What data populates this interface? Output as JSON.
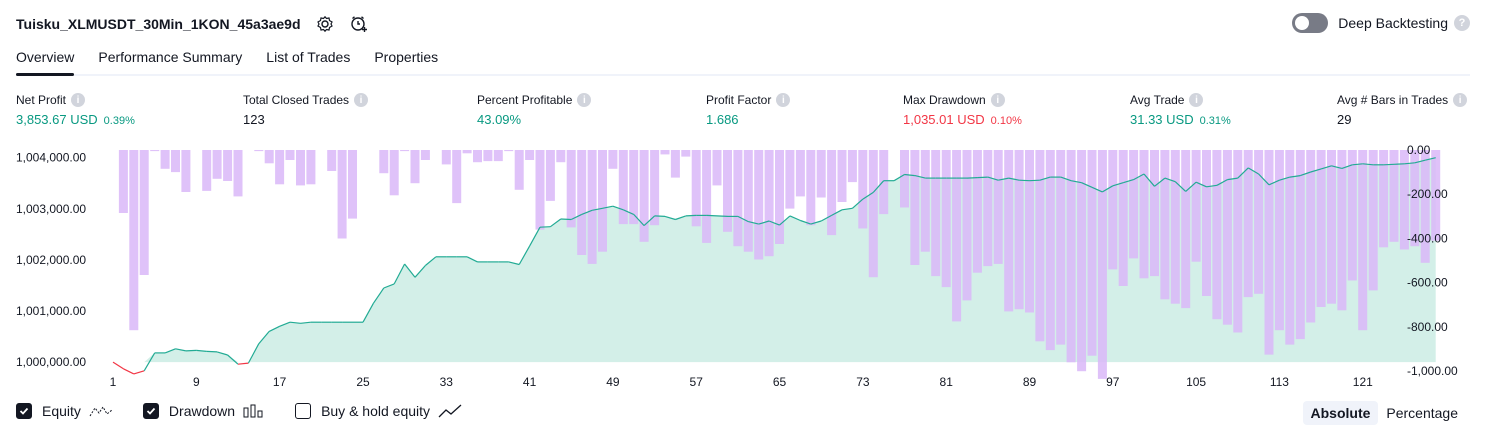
{
  "header": {
    "title": "Tuisku_XLMUSDT_30Min_1KON_45a3ae9d",
    "deep_backtesting_label": "Deep Backtesting"
  },
  "tabs": [
    {
      "label": "Overview"
    },
    {
      "label": "Performance Summary"
    },
    {
      "label": "List of Trades"
    },
    {
      "label": "Properties"
    }
  ],
  "metrics": {
    "net_profit": {
      "label": "Net Profit",
      "value": "3,853.67 USD",
      "pct": "0.39%"
    },
    "total_closed_trades": {
      "label": "Total Closed Trades",
      "value": "123"
    },
    "percent_profitable": {
      "label": "Percent Profitable",
      "value": "43.09%"
    },
    "profit_factor": {
      "label": "Profit Factor",
      "value": "1.686"
    },
    "max_drawdown": {
      "label": "Max Drawdown",
      "value": "1,035.01 USD",
      "pct": "0.10%"
    },
    "avg_trade": {
      "label": "Avg Trade",
      "value": "31.33 USD",
      "pct": "0.31%"
    },
    "avg_bars": {
      "label": "Avg # Bars in Trades",
      "value": "29"
    }
  },
  "legend": {
    "equity": "Equity",
    "drawdown": "Drawdown",
    "buy_hold": "Buy & hold equity"
  },
  "modes": {
    "absolute": "Absolute",
    "percentage": "Percentage"
  },
  "colors": {
    "equity_line": "#22ab94",
    "equity_fill": "#d3efe8",
    "equity_negative": "#f23645",
    "drawdown_bar": "#d9b7f8",
    "drawdown_overlap": "#b5acee",
    "positive": "#089981",
    "negative": "#f23645"
  },
  "chart_data": {
    "type": "line",
    "left_axis": {
      "range": [
        999650,
        1004150
      ],
      "ticks": [
        "1,004,000.00",
        "1,003,000.00",
        "1,002,000.00",
        "1,001,000.00",
        "1,000,000.00"
      ],
      "tick_values": [
        1004000,
        1003000,
        1002000,
        1001000,
        1000000
      ]
    },
    "right_axis": {
      "range": [
        -1040,
        0
      ],
      "ticks": [
        "0.00",
        "-200.00",
        "-400.00",
        "-600.00",
        "-800.00",
        "-1,000.00"
      ],
      "tick_values": [
        0,
        -200,
        -400,
        -600,
        -800,
        -1000
      ]
    },
    "x_ticks": [
      1,
      9,
      17,
      25,
      33,
      41,
      49,
      57,
      65,
      73,
      81,
      89,
      97,
      105,
      113,
      121
    ],
    "x_range": [
      1,
      124
    ],
    "equity": [
      1000000,
      999870,
      999770,
      999830,
      1000180,
      1000180,
      1000260,
      1000220,
      1000230,
      1000210,
      1000200,
      1000140,
      999960,
      999980,
      1000360,
      1000600,
      1000700,
      1000780,
      1000760,
      1000780,
      1000780,
      1000780,
      1000780,
      1000780,
      1000780,
      1001150,
      1001450,
      1001530,
      1001920,
      1001660,
      1001890,
      1002060,
      1002060,
      1002060,
      1002060,
      1001960,
      1001960,
      1001960,
      1001960,
      1001910,
      1002270,
      1002640,
      1002650,
      1002800,
      1002790,
      1002890,
      1002970,
      1003010,
      1003050,
      1002980,
      1002890,
      1002670,
      1002860,
      1002850,
      1002790,
      1002860,
      1002870,
      1002870,
      1002860,
      1002850,
      1002850,
      1002750,
      1002700,
      1002760,
      1002680,
      1002860,
      1002770,
      1002700,
      1002760,
      1002870,
      1002980,
      1003010,
      1003190,
      1003320,
      1003550,
      1003550,
      1003670,
      1003650,
      1003600,
      1003600,
      1003600,
      1003600,
      1003600,
      1003610,
      1003620,
      1003560,
      1003600,
      1003560,
      1003550,
      1003560,
      1003620,
      1003620,
      1003550,
      1003510,
      1003420,
      1003330,
      1003450,
      1003510,
      1003570,
      1003680,
      1003440,
      1003600,
      1003530,
      1003340,
      1003520,
      1003430,
      1003460,
      1003570,
      1003600,
      1003800,
      1003680,
      1003470,
      1003560,
      1003620,
      1003650,
      1003720,
      1003780,
      1003840,
      1003790,
      1003860,
      1003880,
      1003860,
      1003860,
      1003870,
      1003880,
      1003900,
      1003950,
      1004000
    ],
    "drawdown": [
      0,
      -285,
      -815,
      -565,
      -5,
      -85,
      -100,
      -190,
      0,
      -185,
      -130,
      -140,
      -210,
      0,
      -5,
      -60,
      -155,
      -45,
      -160,
      -155,
      0,
      -95,
      -400,
      -310,
      0,
      0,
      -105,
      -205,
      -5,
      -150,
      -45,
      0,
      -65,
      -240,
      -15,
      -55,
      -50,
      -50,
      -5,
      -180,
      -45,
      -360,
      -230,
      -55,
      -350,
      -475,
      -515,
      -460,
      -85,
      -335,
      -335,
      -415,
      -340,
      -20,
      -125,
      -30,
      -345,
      -420,
      -160,
      -370,
      -435,
      -460,
      -495,
      -480,
      -425,
      -265,
      -210,
      -340,
      -215,
      -385,
      -235,
      -145,
      -355,
      -575,
      -290,
      0,
      -260,
      -520,
      -460,
      -570,
      -620,
      -775,
      -680,
      -555,
      -525,
      -515,
      -730,
      -720,
      -735,
      -865,
      -905,
      -880,
      -960,
      -1000,
      -930,
      -1035,
      -540,
      -615,
      -490,
      -580,
      -570,
      -675,
      -695,
      -715,
      -505,
      -660,
      -765,
      -790,
      -825,
      -665,
      -650,
      -925,
      -815,
      -880,
      -855,
      -780,
      -710,
      -695,
      -725,
      -590,
      -815,
      -635,
      -440,
      -415,
      -450,
      -435,
      -510,
      -410
    ]
  }
}
